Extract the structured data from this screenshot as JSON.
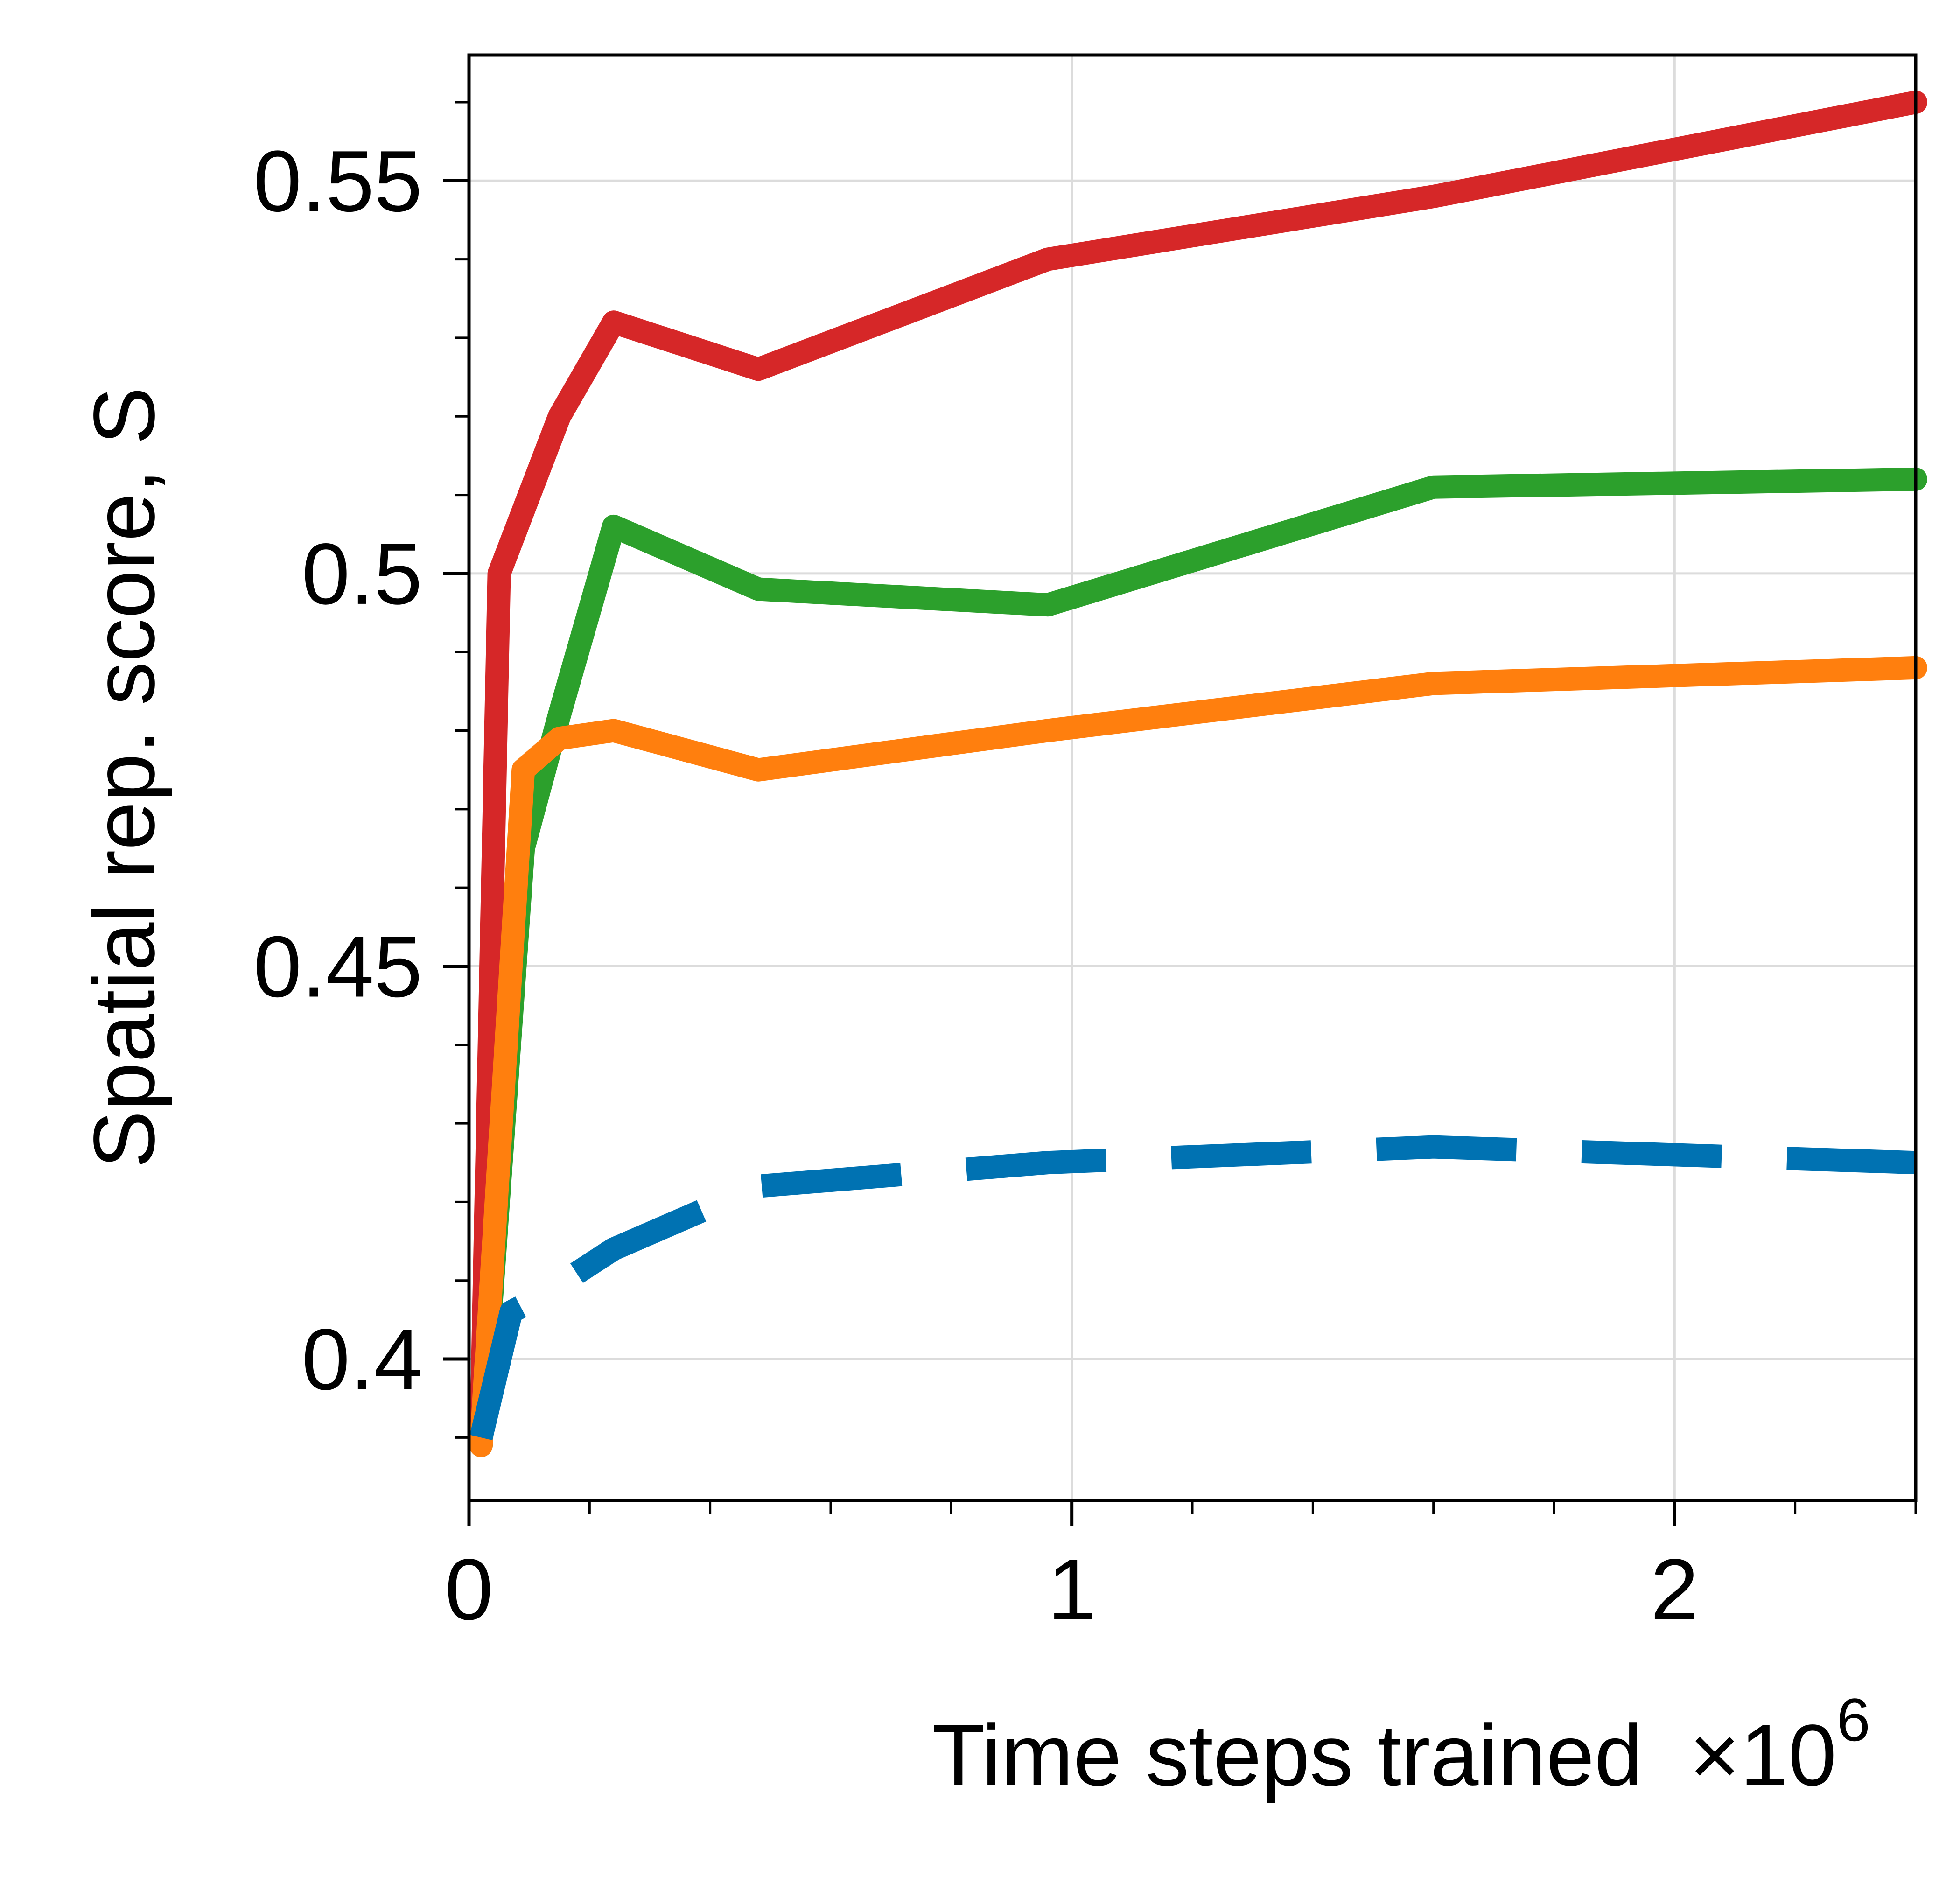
{
  "chart_data": {
    "type": "line",
    "xlabel": "Time steps trained",
    "x_multiplier_base": "×10",
    "x_multiplier_exp": "6",
    "ylabel": "Spatial rep. score, S",
    "xlim": [
      0,
      2.4
    ],
    "ylim": [
      0.382,
      0.566
    ],
    "x_ticks": [
      0,
      1,
      2
    ],
    "x_tick_labels": [
      "0",
      "1",
      "2"
    ],
    "x_minor_step": 0.2,
    "y_ticks": [
      0.4,
      0.45,
      0.5,
      0.55
    ],
    "y_tick_labels": [
      "0.4",
      "0.45",
      "0.5",
      "0.55"
    ],
    "y_minor_step": 0.01,
    "grid": true,
    "series": [
      {
        "color": "#d62728",
        "style": "solid",
        "points": [
          [
            0.02,
            0.389
          ],
          [
            0.05,
            0.5
          ],
          [
            0.15,
            0.52
          ],
          [
            0.24,
            0.532
          ],
          [
            0.48,
            0.526
          ],
          [
            0.96,
            0.54
          ],
          [
            1.6,
            0.548
          ],
          [
            2.4,
            0.56
          ]
        ]
      },
      {
        "color": "#2ca02c",
        "style": "solid",
        "points": [
          [
            0.02,
            0.389
          ],
          [
            0.09,
            0.465
          ],
          [
            0.15,
            0.482
          ],
          [
            0.24,
            0.506
          ],
          [
            0.48,
            0.498
          ],
          [
            0.96,
            0.496
          ],
          [
            1.6,
            0.511
          ],
          [
            2.4,
            0.512
          ]
        ]
      },
      {
        "color": "#ff7f0e",
        "style": "solid",
        "points": [
          [
            0.02,
            0.389
          ],
          [
            0.09,
            0.475
          ],
          [
            0.15,
            0.479
          ],
          [
            0.24,
            0.48
          ],
          [
            0.48,
            0.475
          ],
          [
            0.96,
            0.48
          ],
          [
            1.6,
            0.486
          ],
          [
            2.4,
            0.488
          ]
        ]
      },
      {
        "color": "#0072b2",
        "style": "dashed",
        "points": [
          [
            0.02,
            0.39
          ],
          [
            0.07,
            0.406
          ],
          [
            0.12,
            0.408
          ],
          [
            0.24,
            0.414
          ],
          [
            0.48,
            0.422
          ],
          [
            0.96,
            0.425
          ],
          [
            1.6,
            0.427
          ],
          [
            2.4,
            0.425
          ]
        ]
      }
    ]
  }
}
